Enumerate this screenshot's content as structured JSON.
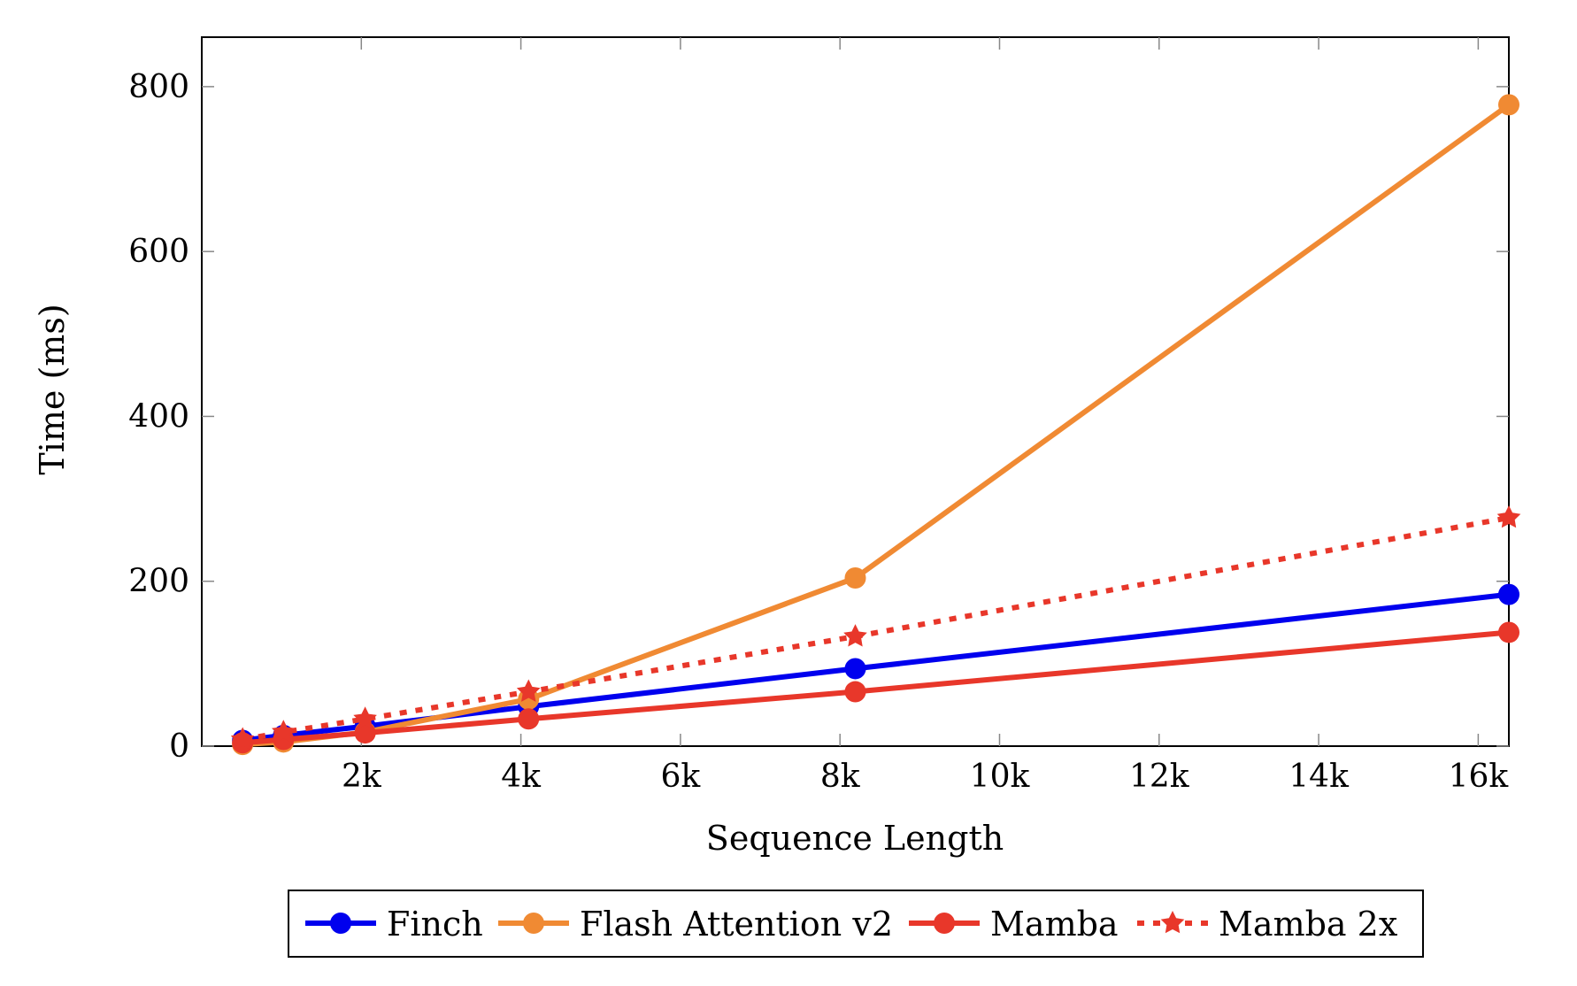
{
  "chart_data": {
    "type": "line",
    "title": "",
    "xlabel": "Sequence Length",
    "ylabel": "Time (ms)",
    "xlim": [
      0,
      16384
    ],
    "ylim": [
      0,
      860
    ],
    "xticks": [
      2000,
      4000,
      6000,
      8000,
      10000,
      12000,
      14000,
      16000
    ],
    "xtick_labels": [
      "2k",
      "4k",
      "6k",
      "8k",
      "10k",
      "12k",
      "14k",
      "16k"
    ],
    "yticks": [
      0,
      200,
      400,
      600,
      800
    ],
    "ytick_labels": [
      "0",
      "200",
      "400",
      "600",
      "800"
    ],
    "grid": false,
    "legend_placement": "bottom-outside",
    "x": [
      512,
      1024,
      2048,
      4096,
      8192,
      16384
    ],
    "series": [
      {
        "name": "Finch",
        "color": "#0000ee",
        "style": "solid",
        "marker": "circle",
        "values": [
          7,
          13,
          24,
          48,
          94,
          184
        ]
      },
      {
        "name": "Flash Attention v2",
        "color": "#f08a33",
        "style": "solid",
        "marker": "circle",
        "values": [
          2,
          5,
          17,
          57,
          204,
          778
        ]
      },
      {
        "name": "Mamba",
        "color": "#e8372a",
        "style": "solid",
        "marker": "circle",
        "values": [
          4,
          8,
          16,
          33,
          66,
          138
        ]
      },
      {
        "name": "Mamba 2x",
        "color": "#e8372a",
        "style": "dotted",
        "marker": "star",
        "values": [
          8,
          17,
          33,
          66,
          133,
          277
        ]
      }
    ]
  }
}
